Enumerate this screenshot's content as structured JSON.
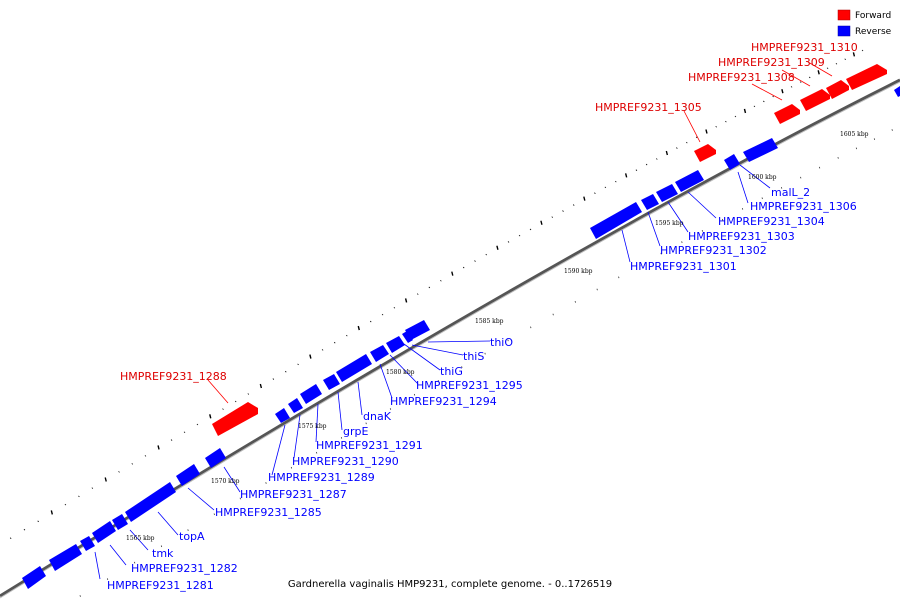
{
  "legend": {
    "forward_label": "Forward",
    "reverse_label": "Reverse",
    "forward_color": "#ff0000",
    "reverse_color": "#0000ff"
  },
  "caption": "Gardnerella vaginalis HMP9231, complete genome. - 0..1726519",
  "ticks": [
    "1565 kbp",
    "1570 kbp",
    "1575 kbp",
    "1580 kbp",
    "1585 kbp",
    "1590 kbp",
    "1595 kbp",
    "1600 kbp",
    "1605 kbp"
  ],
  "genes_forward": [
    "HMPREF9231_1288",
    "HMPREF9231_1305",
    "HMPREF9231_1308",
    "HMPREF9231_1309",
    "HMPREF9231_1310"
  ],
  "genes_reverse": [
    "HMPREF9231_1281",
    "HMPREF9231_1282",
    "tmk",
    "topA",
    "HMPREF9231_1285",
    "HMPREF9231_1287",
    "HMPREF9231_1289",
    "HMPREF9231_1290",
    "HMPREF9231_1291",
    "grpE",
    "dnaK",
    "HMPREF9231_1294",
    "HMPREF9231_1295",
    "thiG",
    "thiS",
    "thiO",
    "HMPREF9231_1301",
    "HMPREF9231_1302",
    "HMPREF9231_1303",
    "HMPREF9231_1304",
    "HMPREF9231_1306",
    "malL_2"
  ]
}
